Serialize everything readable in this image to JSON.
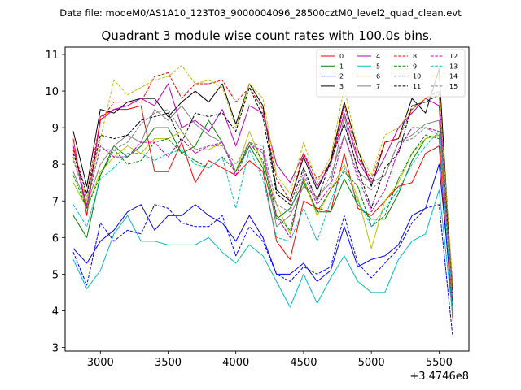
{
  "suptitle": "Data file: modeM0/AS1A10_123T03_9000004096_28500cztM0_level2_quad_clean.evt",
  "chart_data": {
    "type": "line",
    "title": "Quadrant 3 module wise count rates with 100.0s bins.",
    "xlabel": "",
    "ylabel": "",
    "x_offset_label": "+3.4746e8",
    "xlim": [
      2740,
      5720
    ],
    "ylim": [
      2.9,
      11.2
    ],
    "xticks": [
      3000,
      3500,
      4000,
      4500,
      5000,
      5500
    ],
    "yticks": [
      3,
      4,
      5,
      6,
      7,
      8,
      9,
      10,
      11
    ],
    "legend_position": "top-right",
    "x": [
      2800,
      2900,
      3000,
      3100,
      3200,
      3300,
      3400,
      3500,
      3600,
      3700,
      3800,
      3900,
      4000,
      4100,
      4200,
      4300,
      4400,
      4500,
      4600,
      4700,
      4800,
      4900,
      5000,
      5100,
      5200,
      5300,
      5400,
      5500,
      5600
    ],
    "series": [
      {
        "name": "0",
        "color": "#ff0000",
        "dash": "solid",
        "values": [
          8.7,
          6.6,
          9.3,
          9.5,
          9.5,
          9.6,
          7.8,
          7.8,
          8.6,
          7.5,
          8.1,
          7.9,
          7.7,
          8.1,
          7.8,
          5.9,
          5.4,
          7.0,
          6.8,
          6.7,
          8.3,
          6.8,
          6.6,
          7.0,
          7.4,
          7.5,
          8.3,
          8.5,
          3.8
        ]
      },
      {
        "name": "1",
        "color": "#008000",
        "dash": "solid",
        "values": [
          6.6,
          6.0,
          7.7,
          8.5,
          8.2,
          8.5,
          9.0,
          9.0,
          8.3,
          8.5,
          9.2,
          8.6,
          7.8,
          8.5,
          7.9,
          6.5,
          6.8,
          7.5,
          6.7,
          6.7,
          7.6,
          6.9,
          6.5,
          6.5,
          7.2,
          8.1,
          8.7,
          8.8,
          4.5
        ]
      },
      {
        "name": "2",
        "color": "#0000ff",
        "dash": "solid",
        "values": [
          5.7,
          5.3,
          5.9,
          6.2,
          6.7,
          6.9,
          6.2,
          6.6,
          6.6,
          6.9,
          6.6,
          6.4,
          5.9,
          6.6,
          6.0,
          5.0,
          5.0,
          5.3,
          4.8,
          5.1,
          6.3,
          5.2,
          5.4,
          5.5,
          5.8,
          6.6,
          6.8,
          8.0,
          4.2
        ]
      },
      {
        "name": "3",
        "color": "#000000",
        "dash": "solid",
        "values": [
          8.9,
          7.4,
          9.5,
          9.4,
          9.7,
          9.8,
          9.8,
          9.3,
          9.7,
          10.0,
          9.7,
          10.2,
          9.1,
          10.2,
          9.6,
          7.3,
          7.0,
          8.2,
          7.3,
          8.1,
          9.7,
          8.4,
          7.4,
          8.6,
          8.7,
          9.8,
          9.4,
          10.6,
          4.3
        ]
      },
      {
        "name": "4",
        "color": "#bf00bf",
        "dash": "solid",
        "values": [
          8.5,
          6.8,
          9.2,
          9.5,
          9.6,
          9.8,
          9.6,
          10.2,
          9.0,
          9.2,
          8.9,
          9.5,
          8.5,
          9.6,
          9.4,
          8.0,
          7.5,
          8.3,
          7.4,
          8.0,
          9.4,
          8.1,
          7.5,
          8.2,
          9.0,
          9.4,
          9.8,
          9.6,
          4.0
        ]
      },
      {
        "name": "5",
        "color": "#00bfbf",
        "dash": "solid",
        "values": [
          5.4,
          4.6,
          5.1,
          6.1,
          6.6,
          5.9,
          5.9,
          5.8,
          5.8,
          5.8,
          6.0,
          5.6,
          5.3,
          5.8,
          5.5,
          4.8,
          4.1,
          5.0,
          4.2,
          4.9,
          5.5,
          4.8,
          4.5,
          4.5,
          5.4,
          5.9,
          6.1,
          7.3,
          3.9
        ]
      },
      {
        "name": "6",
        "color": "#bfbf00",
        "dash": "solid",
        "values": [
          7.5,
          6.8,
          7.8,
          8.2,
          8.5,
          8.3,
          8.7,
          8.7,
          8.9,
          8.4,
          8.4,
          8.6,
          7.8,
          8.9,
          8.0,
          6.9,
          6.1,
          7.6,
          6.6,
          7.3,
          8.0,
          7.1,
          5.7,
          7.0,
          7.5,
          8.3,
          8.7,
          8.8,
          4.4
        ]
      },
      {
        "name": "7",
        "color": "#808080",
        "dash": "solid",
        "values": [
          7.8,
          6.9,
          8.0,
          8.5,
          8.8,
          8.6,
          9.5,
          9.2,
          9.6,
          9.1,
          8.8,
          8.6,
          7.8,
          8.6,
          8.3,
          6.3,
          6.6,
          7.4,
          7.1,
          7.5,
          9.3,
          7.8,
          7.5,
          7.7,
          8.6,
          8.8,
          9.1,
          9.2,
          4.7
        ]
      },
      {
        "name": "8",
        "color": "#ff0000",
        "dash": "dashed",
        "values": [
          8.4,
          7.2,
          9.2,
          9.7,
          9.7,
          9.7,
          10.4,
          10.5,
          9.8,
          10.2,
          10.2,
          10.3,
          9.7,
          10.1,
          9.5,
          7.6,
          7.0,
          8.3,
          7.6,
          8.0,
          9.6,
          8.2,
          7.6,
          8.6,
          8.7,
          9.5,
          9.8,
          10.0,
          4.6
        ]
      },
      {
        "name": "9",
        "color": "#008000",
        "dash": "dashed",
        "values": [
          7.7,
          6.8,
          7.7,
          8.4,
          8.0,
          8.1,
          8.6,
          8.7,
          8.3,
          8.1,
          7.9,
          8.2,
          7.8,
          8.6,
          8.1,
          6.6,
          6.2,
          7.6,
          6.7,
          7.3,
          7.8,
          7.4,
          6.3,
          6.6,
          7.6,
          8.3,
          8.8,
          8.7,
          4.6
        ]
      },
      {
        "name": "10",
        "color": "#0000ff",
        "dash": "dashed",
        "values": [
          5.6,
          4.7,
          6.4,
          5.9,
          6.2,
          6.1,
          6.9,
          6.8,
          6.4,
          6.3,
          6.3,
          6.6,
          5.5,
          6.3,
          5.9,
          5.0,
          4.8,
          5.2,
          5.0,
          5.2,
          6.6,
          5.3,
          4.9,
          5.3,
          5.7,
          6.4,
          6.8,
          6.9,
          3.3
        ]
      },
      {
        "name": "11",
        "color": "#000000",
        "dash": "dashed",
        "values": [
          8.3,
          7.2,
          8.8,
          8.7,
          8.8,
          9.2,
          9.3,
          9.4,
          8.6,
          9.4,
          9.3,
          9.4,
          8.9,
          10.1,
          9.3,
          7.2,
          6.9,
          7.9,
          7.0,
          8.1,
          9.1,
          7.9,
          6.8,
          7.9,
          8.3,
          9.6,
          9.7,
          9.9,
          4.5
        ]
      },
      {
        "name": "12",
        "color": "#bf00bf",
        "dash": "dashed",
        "values": [
          8.2,
          6.9,
          8.5,
          8.2,
          8.2,
          8.6,
          8.6,
          8.2,
          8.7,
          8.3,
          8.5,
          8.6,
          7.7,
          8.5,
          8.4,
          6.6,
          6.0,
          7.7,
          6.9,
          7.4,
          8.8,
          7.7,
          6.7,
          7.3,
          8.4,
          9.0,
          9.0,
          8.9,
          4.6
        ]
      },
      {
        "name": "13",
        "color": "#00bfbf",
        "dash": "dashed",
        "values": [
          6.9,
          6.3,
          7.6,
          7.9,
          8.3,
          8.3,
          8.1,
          8.3,
          8.4,
          8.0,
          7.9,
          8.2,
          6.8,
          8.4,
          7.6,
          6.0,
          5.9,
          6.8,
          5.9,
          7.0,
          7.9,
          7.0,
          6.3,
          6.8,
          7.3,
          8.0,
          8.5,
          8.9,
          4.0
        ]
      },
      {
        "name": "14",
        "color": "#bfbf00",
        "dash": "dashed",
        "values": [
          8.2,
          7.0,
          8.7,
          10.3,
          9.9,
          10.1,
          10.3,
          10.4,
          10.7,
          10.2,
          10.3,
          10.1,
          9.0,
          10.2,
          9.8,
          7.7,
          7.2,
          8.6,
          7.5,
          8.2,
          10.1,
          8.4,
          7.7,
          8.8,
          9.0,
          9.5,
          9.8,
          9.9,
          4.8
        ]
      },
      {
        "name": "15",
        "color": "#808080",
        "dash": "dashed",
        "values": [
          8.1,
          7.1,
          8.4,
          8.4,
          8.6,
          9.1,
          9.4,
          9.5,
          8.9,
          8.4,
          8.5,
          8.5,
          8.0,
          8.6,
          8.5,
          6.9,
          6.7,
          7.8,
          7.0,
          7.7,
          8.8,
          7.6,
          7.3,
          7.7,
          8.6,
          8.7,
          9.0,
          8.8,
          4.7
        ]
      }
    ]
  }
}
